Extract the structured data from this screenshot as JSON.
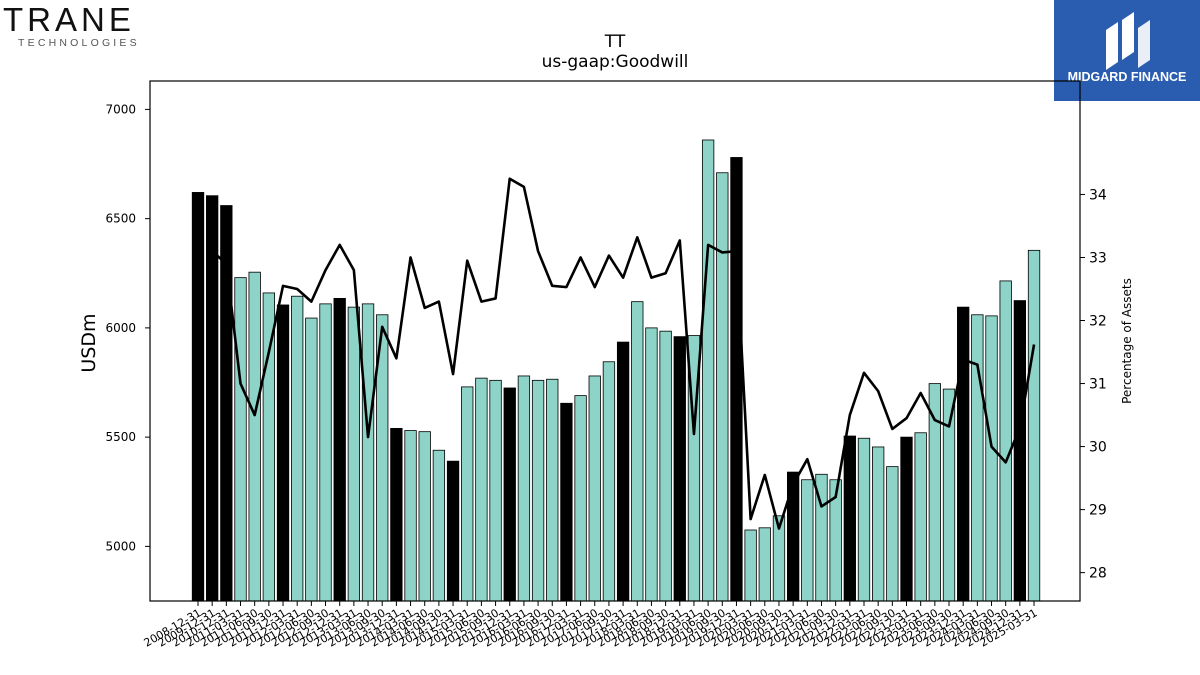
{
  "brand": {
    "left_logo_word": "TRANE",
    "left_logo_sub": "TECHNOLOGIES",
    "right_logo_word": "MIDGARD FINANCE",
    "right_logo_color": "#2a5db0"
  },
  "chart_data": {
    "type": "bar",
    "title": "TT",
    "subtitle": "us-gaap:Goodwill",
    "ylabel": "USDm",
    "ylabel_right": "Percentage of Assets",
    "ylim": [
      4750,
      7130
    ],
    "ylim_right": [
      27.55,
      35.8
    ],
    "yticks": [
      5000,
      5500,
      6000,
      6500,
      7000
    ],
    "yticks_right": [
      28,
      29,
      30,
      31,
      32,
      33,
      34
    ],
    "grid": false,
    "colors": {
      "annual_bar": "#000000",
      "quarterly_bar": "#8dd3c7",
      "line": "#000000"
    },
    "x_labels": [
      "2008-12-31",
      "2009-12-31",
      "2010-12-31",
      "2011-03-31",
      "2011-06-30",
      "2011-09-30",
      "2011-12-31",
      "2012-03-31",
      "2012-06-30",
      "2012-09-30",
      "2012-12-31",
      "2013-03-31",
      "2013-06-30",
      "2013-09-30",
      "2013-12-31",
      "2014-03-31",
      "2014-06-30",
      "2014-09-30",
      "2014-12-31",
      "2015-03-31",
      "2015-06-30",
      "2015-09-30",
      "2015-12-31",
      "2016-03-31",
      "2016-06-30",
      "2016-09-30",
      "2016-12-31",
      "2017-03-31",
      "2017-06-30",
      "2017-09-30",
      "2017-12-31",
      "2018-03-31",
      "2018-06-30",
      "2018-09-30",
      "2018-12-31",
      "2019-03-31",
      "2019-06-30",
      "2019-09-30",
      "2019-12-31",
      "2020-03-31",
      "2020-06-30",
      "2020-09-30",
      "2020-12-31",
      "2021-03-31",
      "2021-06-30",
      "2021-09-30",
      "2021-12-31",
      "2022-03-31",
      "2022-06-30",
      "2022-09-30",
      "2022-12-31",
      "2023-03-31",
      "2023-06-30",
      "2023-09-30",
      "2023-12-31",
      "2024-03-31",
      "2024-06-30",
      "2024-09-30",
      "2024-12-31",
      "2025-03-31"
    ],
    "series": [
      {
        "type": "bar",
        "values": [
          6620,
          6605,
          6560,
          6230,
          6255,
          6160,
          6105,
          6145,
          6045,
          6110,
          6135,
          6095,
          6110,
          6060,
          5540,
          5530,
          5525,
          5440,
          5390,
          5730,
          5770,
          5760,
          5725,
          5780,
          5760,
          5765,
          5655,
          5690,
          5780,
          5845,
          5935,
          6120,
          6000,
          5985,
          5960,
          5965,
          6860,
          6710,
          6780,
          5075,
          5085,
          5140,
          5340,
          5305,
          5330,
          5305,
          5505,
          5495,
          5455,
          5365,
          5500,
          5520,
          5745,
          5720,
          6095,
          6060,
          6055,
          6215,
          6125,
          6355
        ],
        "annual": [
          1,
          1,
          1,
          0,
          0,
          0,
          1,
          0,
          0,
          0,
          1,
          0,
          0,
          0,
          1,
          0,
          0,
          0,
          1,
          0,
          0,
          0,
          1,
          0,
          0,
          0,
          1,
          0,
          0,
          0,
          1,
          0,
          0,
          0,
          1,
          0,
          0,
          0,
          1,
          0,
          0,
          0,
          1,
          0,
          0,
          0,
          1,
          0,
          0,
          0,
          1,
          0,
          0,
          0,
          1,
          0,
          0,
          0,
          1,
          0
        ]
      },
      {
        "type": "line",
        "values": [
          null,
          33.1,
          32.9,
          31.0,
          30.5,
          31.5,
          32.55,
          32.5,
          32.3,
          32.8,
          33.2,
          32.8,
          30.15,
          31.9,
          31.4,
          33.0,
          32.2,
          32.3,
          31.15,
          32.95,
          32.3,
          32.35,
          34.25,
          34.12,
          33.1,
          32.55,
          32.53,
          33.0,
          32.53,
          33.03,
          32.68,
          33.32,
          32.68,
          32.75,
          33.27,
          30.2,
          33.2,
          33.08,
          33.1,
          28.85,
          29.55,
          28.7,
          29.4,
          29.8,
          29.05,
          29.2,
          30.5,
          31.17,
          30.88,
          30.28,
          30.45,
          30.85,
          30.42,
          30.32,
          31.38,
          31.3,
          30.0,
          29.75,
          30.3,
          31.62
        ]
      }
    ]
  }
}
